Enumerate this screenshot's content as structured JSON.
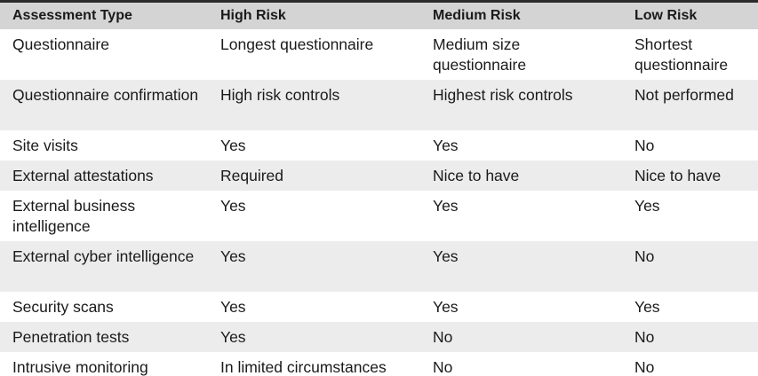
{
  "columns": [
    "Assessment Type",
    "High Risk",
    "Medium Risk",
    "Low Risk"
  ],
  "rows": [
    [
      "Questionnaire",
      "Longest questionnaire",
      "Medium size questionnaire",
      "Shortest questionnaire"
    ],
    [
      "Questionnaire confirmation",
      "High risk controls",
      "Highest risk controls",
      "Not performed"
    ],
    [
      "Site visits",
      "Yes",
      "Yes",
      "No"
    ],
    [
      "External attestations",
      "Required",
      "Nice to have",
      "Nice to have"
    ],
    [
      "External business intelligence",
      "Yes",
      "Yes",
      "Yes"
    ],
    [
      "External cyber intelligence",
      "Yes",
      "Yes",
      "No"
    ],
    [
      "Security scans",
      "Yes",
      "Yes",
      "Yes"
    ],
    [
      "Penetration tests",
      "Yes",
      "No",
      "No"
    ],
    [
      "Intrusive monitoring",
      "In limited circumstances",
      "No",
      "No"
    ]
  ],
  "colors": {
    "header_bg": "#d4d4d4",
    "row_alt_bg": "#ececec",
    "rule": "#2b2b2b"
  }
}
